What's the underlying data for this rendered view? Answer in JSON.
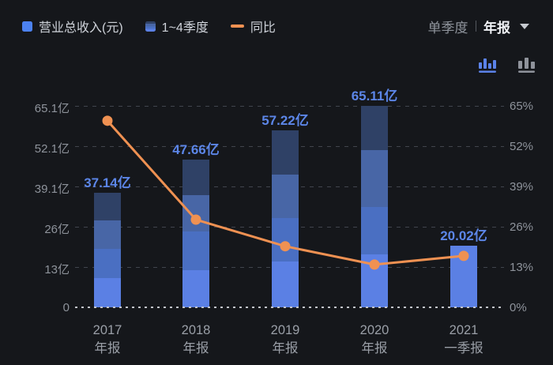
{
  "theme": {
    "background": "#15171b",
    "grid_color": "#41454d",
    "zero_line_color": "#c3c6cb",
    "axis_text_color": "#8e939b",
    "xlabel_text_color": "#9a9fa7",
    "value_label_color": "#5c86e8",
    "legend_text_color": "#ced2d9"
  },
  "header": {
    "legend": [
      {
        "label": "营业总收入(元)",
        "type": "solid-square",
        "color": "#4c82f0"
      },
      {
        "label": "1~4季度",
        "type": "stacked-square",
        "colors_top_to_bottom": [
          "#2f4166",
          "#4866a6",
          "#4a6fc2",
          "#5b80e4"
        ]
      },
      {
        "label": "同比",
        "type": "line-dash",
        "color": "#ef9152"
      }
    ],
    "period_selector": {
      "options": [
        {
          "label": "单季度",
          "active": false
        },
        {
          "label": "年报",
          "active": true
        }
      ]
    }
  },
  "toolbar": {
    "icons": [
      {
        "name": "stacked-bar-chart",
        "active": true,
        "color": "#5b82e8"
      },
      {
        "name": "bar-chart",
        "active": false,
        "color": "#8f939b"
      }
    ]
  },
  "chart_data": {
    "type": "bar",
    "subtype": "stacked-bar-with-line",
    "title": "",
    "legend_position": "top-left",
    "grid": true,
    "categories": [
      {
        "line1": "2017",
        "line2": "年报"
      },
      {
        "line1": "2018",
        "line2": "年报"
      },
      {
        "line1": "2019",
        "line2": "年报"
      },
      {
        "line1": "2020",
        "line2": "年报"
      },
      {
        "line1": "2021",
        "line2": "一季报"
      }
    ],
    "bars": {
      "name": "营业总收入(元)",
      "unit": "亿",
      "totals": [
        37.14,
        47.66,
        57.22,
        65.11,
        20.02
      ],
      "value_labels": [
        "37.14亿",
        "47.66亿",
        "57.22亿",
        "65.11亿",
        "20.02亿"
      ],
      "quarter_segments_bottom_up": [
        [
          9.4,
          9.4,
          9.4,
          8.94
        ],
        [
          12.0,
          12.4,
          11.76,
          11.5
        ],
        [
          14.8,
          14.1,
          14.02,
          14.3
        ],
        [
          17.1,
          15.3,
          18.4,
          14.31
        ],
        [
          20.02
        ]
      ],
      "segment_colors_bottom_up": [
        "#5b80e4",
        "#4a6fc2",
        "#4866a6",
        "#2f4166"
      ]
    },
    "line": {
      "name": "同比",
      "unit": "%",
      "values": [
        60.2,
        28.3,
        19.7,
        13.8,
        16.6
      ],
      "color": "#ef9152"
    },
    "left_axis": {
      "tick_values": [
        65.1,
        52.1,
        39.1,
        26,
        13,
        0
      ],
      "tick_labels": [
        "65.1亿",
        "52.1亿",
        "39.1亿",
        "26亿",
        "13亿",
        "0"
      ],
      "max": 65.1
    },
    "right_axis": {
      "tick_values": [
        65,
        52,
        39,
        26,
        13,
        0
      ],
      "tick_labels": [
        "65%",
        "52%",
        "39%",
        "26%",
        "13%",
        "0%"
      ],
      "max": 65
    }
  }
}
